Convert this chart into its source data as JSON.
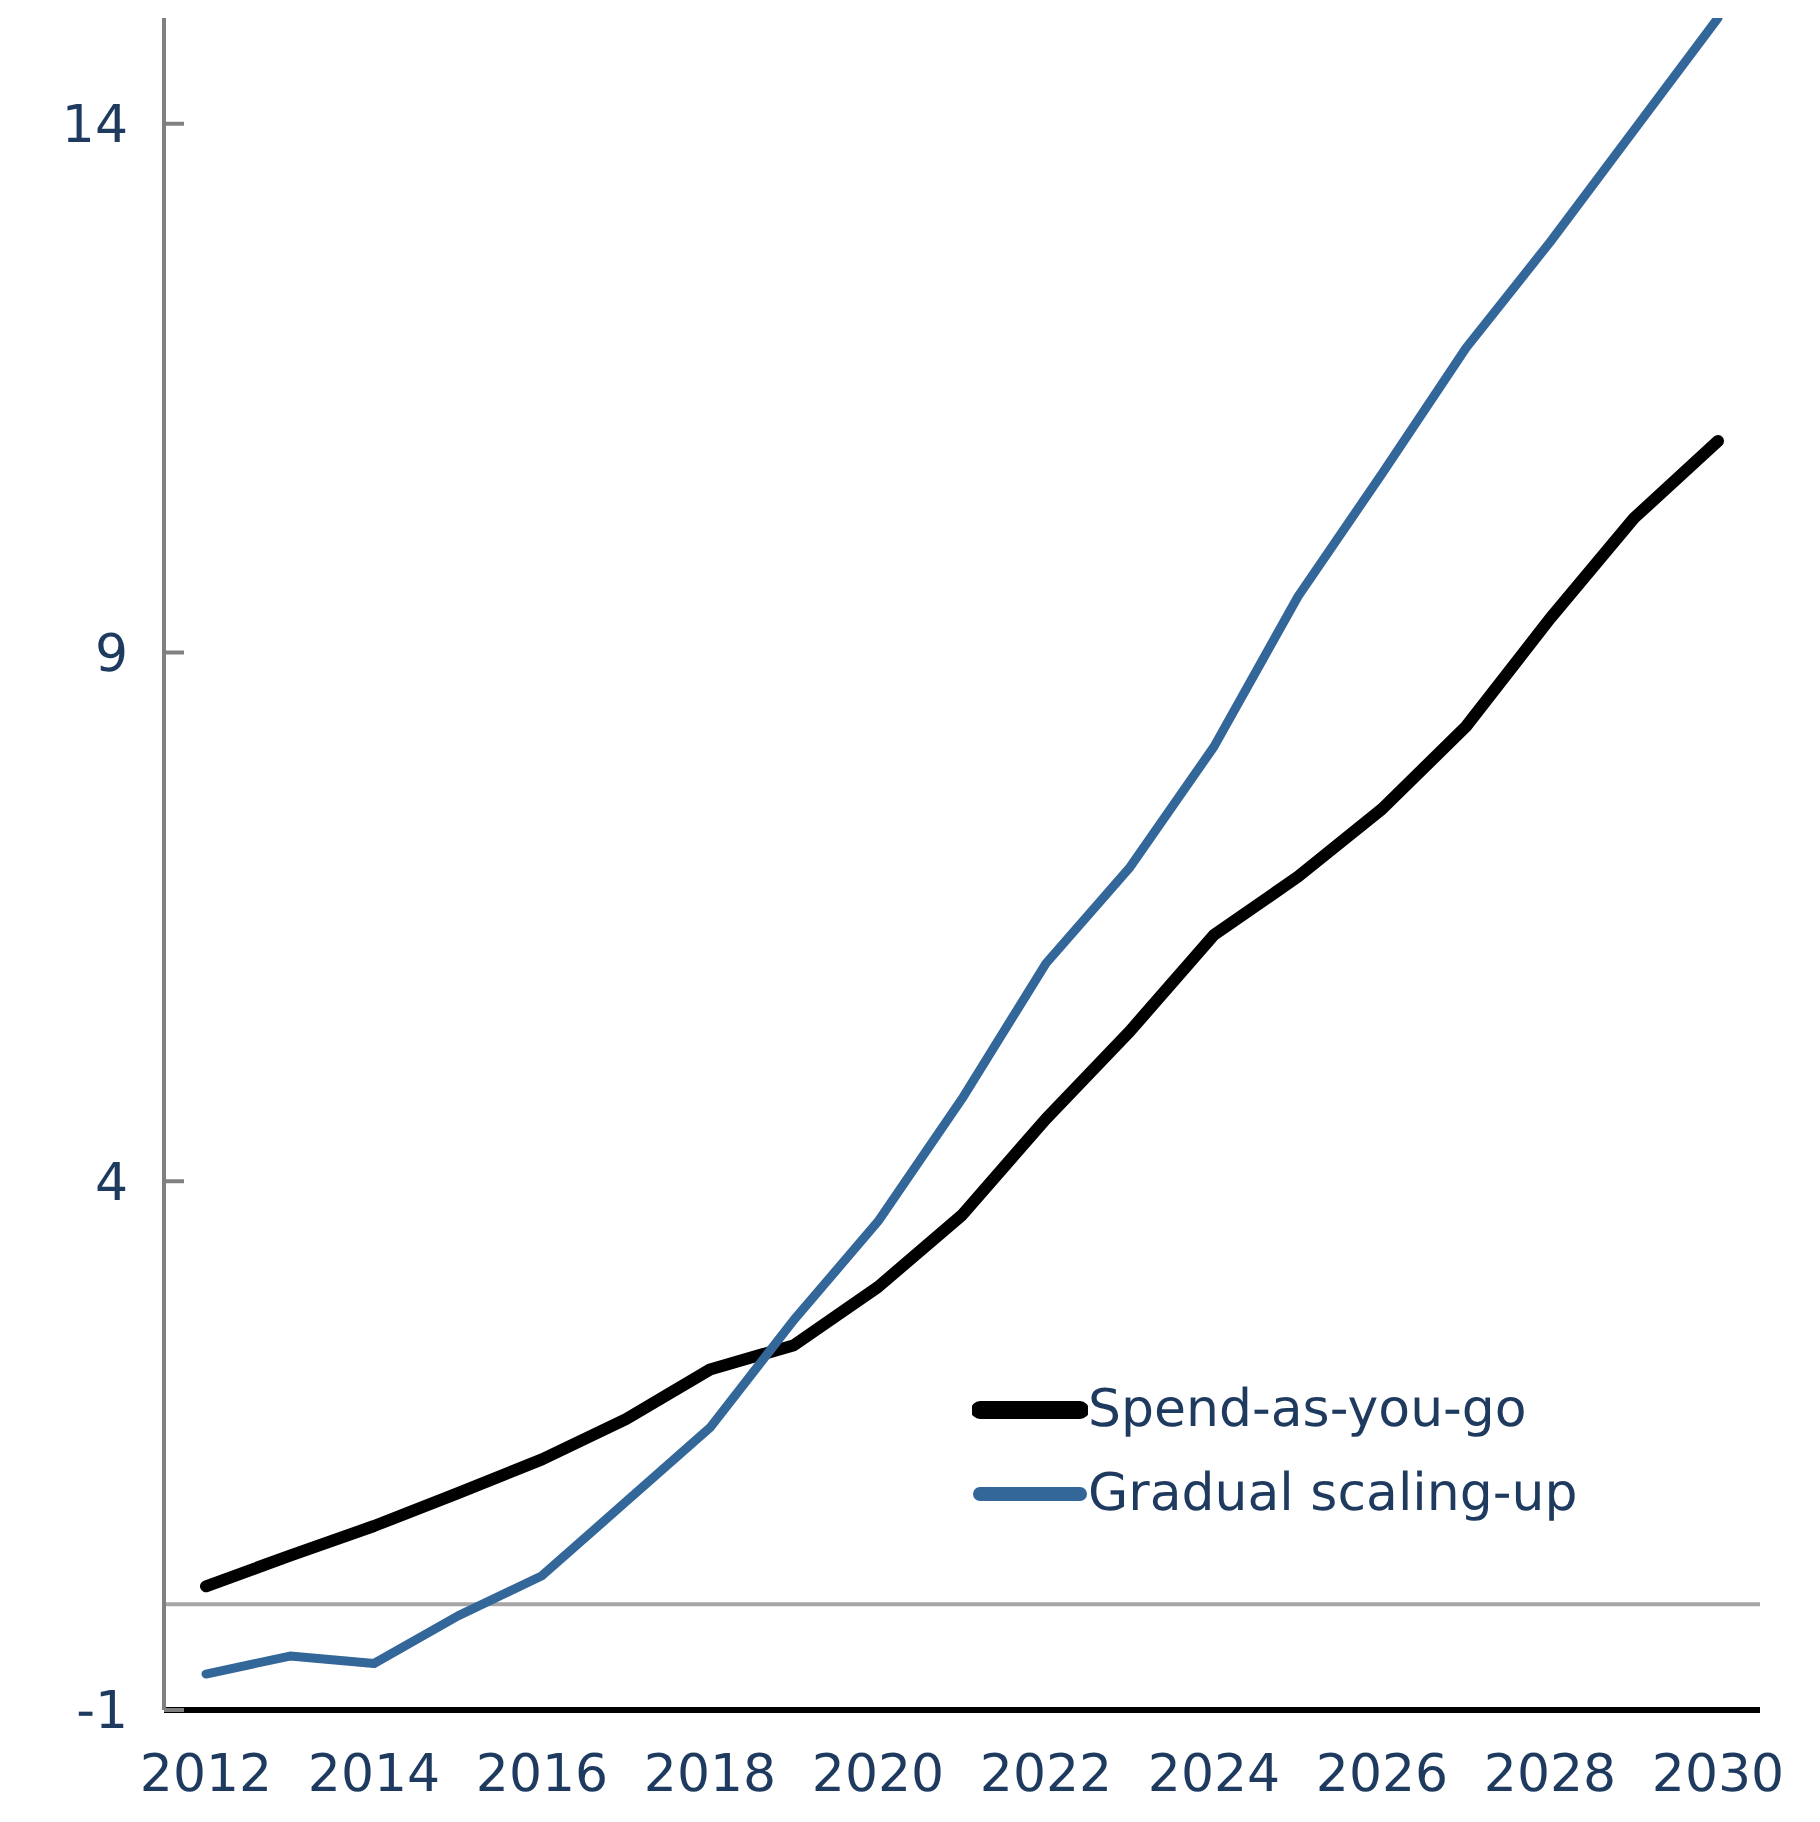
{
  "chart_data": {
    "type": "line",
    "x": [
      2012,
      2013,
      2014,
      2015,
      2016,
      2017,
      2018,
      2019,
      2020,
      2021,
      2022,
      2023,
      2024,
      2025,
      2026,
      2027,
      2028,
      2029,
      2030
    ],
    "series": [
      {
        "name": "Spend-as-you-go",
        "color": "#000000",
        "values": [
          0.17,
          0.46,
          0.74,
          1.05,
          1.37,
          1.75,
          2.22,
          2.45,
          3.0,
          3.68,
          4.59,
          5.42,
          6.33,
          6.88,
          7.52,
          8.3,
          9.32,
          10.27,
          11.0
        ]
      },
      {
        "name": "Gradual scaling-up",
        "color": "#336699",
        "values": [
          -0.66,
          -0.49,
          -0.56,
          -0.11,
          0.27,
          0.97,
          1.67,
          2.69,
          3.62,
          4.78,
          6.06,
          6.97,
          8.11,
          9.53,
          10.69,
          11.88,
          12.88,
          13.94,
          15.0
        ]
      }
    ],
    "xlim": [
      2011.5,
      2030.5
    ],
    "xticks": [
      2012,
      2014,
      2016,
      2018,
      2020,
      2022,
      2024,
      2026,
      2028,
      2030
    ],
    "ylim": [
      -1,
      15
    ],
    "yticks": [
      -1,
      4,
      9,
      14
    ],
    "ref_lines": [
      {
        "axis": "y",
        "value": 0,
        "color": "#a6a6a6"
      }
    ],
    "legend": "bottom right",
    "grid": false,
    "marker": "none",
    "line_style": "solid"
  }
}
